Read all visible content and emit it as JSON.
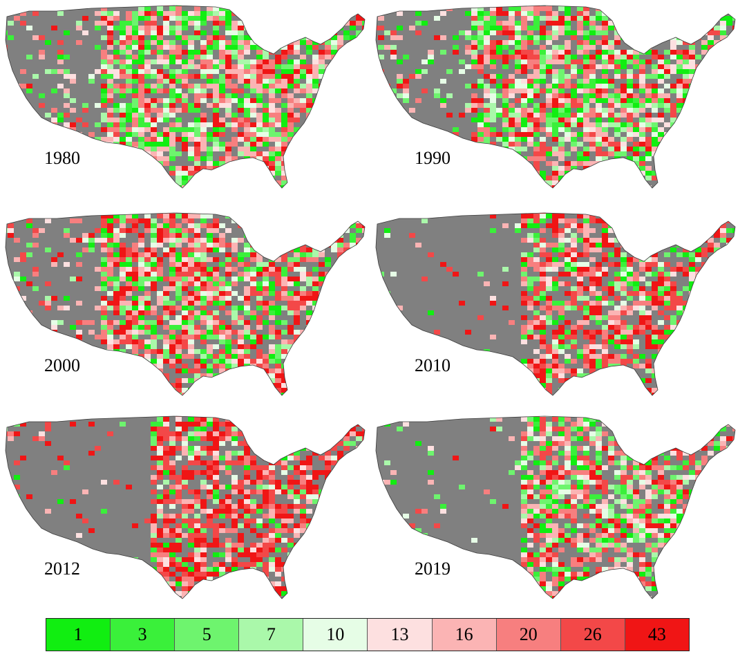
{
  "panels": [
    {
      "year": "1980",
      "palette_bias": [
        0.3,
        0.2,
        0.3,
        0.2
      ]
    },
    {
      "year": "1990",
      "palette_bias": [
        0.3,
        0.2,
        0.25,
        0.25
      ]
    },
    {
      "year": "2000",
      "palette_bias": [
        0.22,
        0.18,
        0.25,
        0.35
      ]
    },
    {
      "year": "2010",
      "palette_bias": [
        0.22,
        0.15,
        0.23,
        0.4
      ]
    },
    {
      "year": "2012",
      "palette_bias": [
        0.12,
        0.1,
        0.18,
        0.6
      ]
    },
    {
      "year": "2019",
      "palette_bias": [
        0.28,
        0.2,
        0.27,
        0.25
      ]
    }
  ],
  "legend": {
    "items": [
      {
        "label": "1",
        "color": "#11ee11"
      },
      {
        "label": "3",
        "color": "#3af03a"
      },
      {
        "label": "5",
        "color": "#6ef46e"
      },
      {
        "label": "7",
        "color": "#aaf8aa"
      },
      {
        "label": "10",
        "color": "#e6fde6"
      },
      {
        "label": "13",
        "color": "#fde0e0"
      },
      {
        "label": "16",
        "color": "#fbb4b4"
      },
      {
        "label": "20",
        "color": "#f77f7f"
      },
      {
        "label": "26",
        "color": "#f34848"
      },
      {
        "label": "43",
        "color": "#f01515"
      }
    ]
  },
  "map_colors": {
    "base": "#808080",
    "border": "#3a3a3a"
  }
}
